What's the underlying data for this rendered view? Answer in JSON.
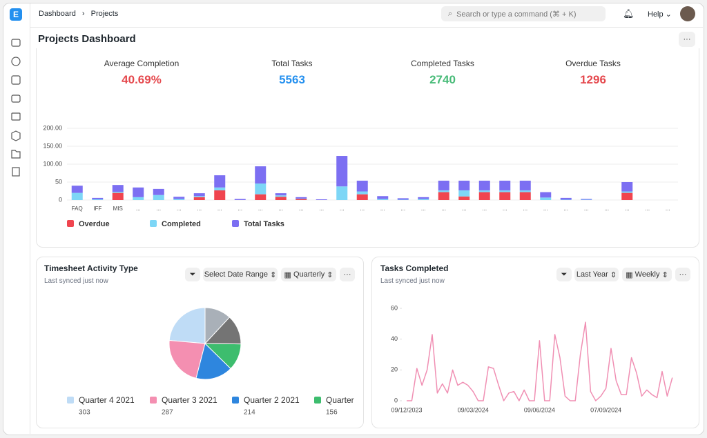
{
  "breadcrumb": [
    "Dashboard",
    "Projects"
  ],
  "search_placeholder": "Search or type a command (⌘ + K)",
  "help": "Help",
  "page_title": "Projects Dashboard",
  "stats": [
    {
      "label": "Average Completion",
      "value": "40.69%",
      "color": "#e5484d"
    },
    {
      "label": "Total Tasks",
      "value": "5563",
      "color": "#2490ef"
    },
    {
      "label": "Completed Tasks",
      "value": "2740",
      "color": "#48bb78"
    },
    {
      "label": "Overdue Tasks",
      "value": "1296",
      "color": "#e5484d"
    }
  ],
  "bar_chart": {
    "type": "bar",
    "stacked": true,
    "grid": true,
    "categories": [
      "FAQ",
      "IFF",
      "MIS",
      "...",
      "...",
      "...",
      "...",
      "...",
      "...",
      "...",
      "...",
      "...",
      "...",
      "...",
      "...",
      "...",
      "...",
      "...",
      "...",
      "...",
      "...",
      "...",
      "...",
      "...",
      "...",
      "...",
      "...",
      "...",
      "...",
      "..."
    ],
    "series": [
      {
        "name": "Overdue",
        "color": "#f0454f",
        "values": [
          0,
          0,
          20,
          0,
          0,
          0,
          8,
          27,
          0,
          16,
          9,
          3,
          0,
          0,
          16,
          0,
          0,
          0,
          22,
          10,
          22,
          22,
          22,
          0,
          0,
          0,
          0,
          20,
          0,
          0
        ]
      },
      {
        "name": "Completed",
        "color": "#7dd6f6",
        "values": [
          20,
          2,
          3,
          8,
          14,
          3,
          3,
          8,
          0,
          30,
          4,
          1,
          0,
          38,
          8,
          3,
          1,
          3,
          5,
          17,
          5,
          5,
          5,
          7,
          1,
          1,
          0,
          4,
          0,
          0
        ]
      },
      {
        "name": "Total Tasks",
        "color": "#7c6ff2",
        "values": [
          20,
          4,
          19,
          27,
          17,
          6,
          8,
          34,
          3,
          48,
          6,
          4,
          2,
          85,
          30,
          8,
          4,
          5,
          27,
          27,
          27,
          27,
          27,
          15,
          5,
          2,
          0,
          26,
          0,
          0
        ]
      }
    ],
    "ylim": [
      0,
      200
    ],
    "yticks": [
      0,
      50,
      {
        "value": 100,
        "label": "100.00"
      },
      {
        "value": 150,
        "label": "150.00"
      },
      {
        "value": 200,
        "label": "200.00"
      }
    ]
  },
  "pie_card": {
    "title": "Timesheet Activity Type",
    "subtitle": "Last synced just now",
    "filters": [
      "Select Date Range",
      "Quarterly"
    ],
    "chart": {
      "type": "pie",
      "categories": [
        "Quarter 4 2021",
        "Quarter 3 2021",
        "Quarter 2 2021",
        "Quarter",
        null,
        null
      ],
      "values": [
        303,
        287,
        214,
        156,
        170,
        153
      ],
      "colors": [
        "#bfdcf6",
        "#f48fb1",
        "#2e86de",
        "#3dbd6e",
        "#747474",
        "#a9b0b8"
      ]
    }
  },
  "line_card": {
    "title": "Tasks Completed",
    "subtitle": "Last synced just now",
    "filters": [
      "Last Year",
      "Weekly"
    ],
    "chart": {
      "type": "line",
      "color": "#f08fb3",
      "categories": [
        "09/12/2023",
        null,
        null,
        null,
        null,
        null,
        null,
        null,
        null,
        null,
        null,
        null,
        null,
        "09/03/2024",
        null,
        null,
        null,
        null,
        null,
        null,
        null,
        null,
        null,
        null,
        null,
        null,
        "09/06/2024",
        null,
        null,
        null,
        null,
        null,
        null,
        null,
        null,
        null,
        null,
        null,
        null,
        "07/09/2024",
        null,
        null,
        null,
        null,
        null,
        null,
        null,
        null,
        null,
        null,
        null,
        null,
        null
      ],
      "values": [
        0,
        0,
        21,
        10,
        20,
        43,
        5,
        11,
        5,
        20,
        10,
        12,
        10,
        6,
        0,
        0,
        22,
        21,
        10,
        0,
        5,
        6,
        0,
        7,
        0,
        0,
        39,
        0,
        0,
        43,
        28,
        3,
        0,
        0,
        30,
        51,
        6,
        0,
        3,
        8,
        34,
        13,
        4,
        4,
        28,
        18,
        3,
        7,
        4,
        2,
        19,
        3,
        15
      ],
      "ylim": [
        0,
        60
      ],
      "yticks": [
        0,
        20,
        40,
        60
      ]
    }
  }
}
